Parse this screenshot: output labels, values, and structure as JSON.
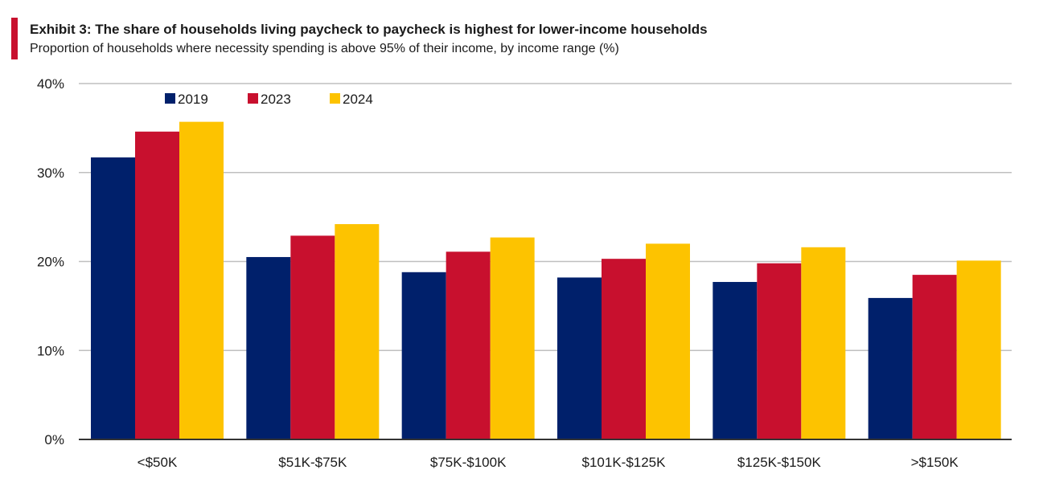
{
  "title": "Exhibit 3: The share of households living paycheck to paycheck is highest for lower-income households",
  "subtitle": "Proportion of households where necessity spending is above 95% of their income, by income range (%)",
  "colors": {
    "accent": "#c8102e",
    "grid": "#bfbfbf",
    "axis": "#333333"
  },
  "chart_data": {
    "type": "bar",
    "title": "Exhibit 3: The share of households living paycheck to paycheck is highest for lower-income households",
    "subtitle": "Proportion of households where necessity spending is above 95% of their income, by income range (%)",
    "xlabel": "",
    "ylabel": "",
    "categories": [
      "<$50K",
      "$51K-$75K",
      "$75K-$100K",
      "$101K-$125K",
      "$125K-$150K",
      ">$150K"
    ],
    "series": [
      {
        "name": "2019",
        "color": "#00206b",
        "values": [
          31.7,
          20.5,
          18.8,
          18.2,
          17.7,
          15.9
        ]
      },
      {
        "name": "2023",
        "color": "#c8102e",
        "values": [
          34.6,
          22.9,
          21.1,
          20.3,
          19.8,
          18.5
        ]
      },
      {
        "name": "2024",
        "color": "#fdc300",
        "values": [
          35.7,
          24.2,
          22.7,
          22.0,
          21.6,
          20.1
        ]
      }
    ],
    "ylim": [
      0,
      40
    ],
    "yticks": [
      0,
      10,
      20,
      30,
      40
    ],
    "ytick_labels": [
      "0%",
      "10%",
      "20%",
      "30%",
      "40%"
    ],
    "grid": true,
    "legend_position": "top-left"
  }
}
